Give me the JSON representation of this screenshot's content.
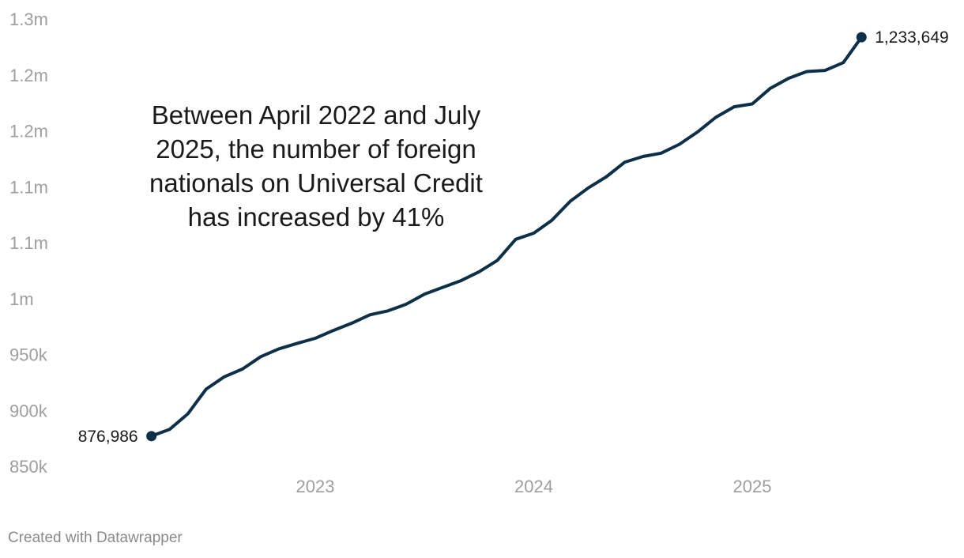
{
  "chart_data": {
    "type": "line",
    "title": "",
    "xlabel": "",
    "ylabel": "",
    "ylim": [
      850000,
      1250000
    ],
    "y_ticks": [
      {
        "value": 1250000,
        "label": "1.3m"
      },
      {
        "value": 1200000,
        "label": "1.2m"
      },
      {
        "value": 1150000,
        "label": "1.2m"
      },
      {
        "value": 1100000,
        "label": "1.1m"
      },
      {
        "value": 1050000,
        "label": "1.1m"
      },
      {
        "value": 1000000,
        "label": "1m"
      },
      {
        "value": 950000,
        "label": "950k"
      },
      {
        "value": 900000,
        "label": "900k"
      },
      {
        "value": 850000,
        "label": "850k"
      }
    ],
    "x_ticks": [
      {
        "value": 2023.0,
        "label": "2023"
      },
      {
        "value": 2024.0,
        "label": "2024"
      },
      {
        "value": 2025.0,
        "label": "2025"
      }
    ],
    "series": [
      {
        "name": "Foreign nationals on Universal Credit",
        "color": "#0d3049",
        "x": [
          2022.25,
          2022.333,
          2022.417,
          2022.5,
          2022.583,
          2022.667,
          2022.75,
          2022.833,
          2022.917,
          2023.0,
          2023.083,
          2023.167,
          2023.25,
          2023.333,
          2023.417,
          2023.5,
          2023.583,
          2023.667,
          2023.75,
          2023.833,
          2023.917,
          2024.0,
          2024.083,
          2024.167,
          2024.25,
          2024.333,
          2024.417,
          2024.5,
          2024.583,
          2024.667,
          2024.75,
          2024.833,
          2024.917,
          2025.0,
          2025.083,
          2025.167,
          2025.25,
          2025.333,
          2025.417,
          2025.5
        ],
        "values": [
          876986,
          883000,
          897000,
          919000,
          930000,
          937000,
          948000,
          955000,
          960000,
          964500,
          971500,
          978000,
          985500,
          989000,
          995000,
          1004000,
          1010000,
          1016000,
          1024000,
          1034000,
          1053000,
          1058500,
          1070000,
          1087000,
          1099000,
          1109000,
          1122000,
          1127000,
          1130000,
          1138000,
          1149000,
          1162000,
          1171500,
          1174000,
          1188000,
          1197000,
          1203000,
          1204000,
          1211000,
          1233649
        ]
      }
    ],
    "data_labels": [
      {
        "index": 0,
        "text": "876,986"
      },
      {
        "index": 39,
        "text": "1,233,649"
      }
    ],
    "annotation": {
      "lines": [
        "Between April 2022 and July",
        "2025, the number of foreign",
        "nationals on Universal Credit",
        "has increased by 41%"
      ]
    },
    "grid": false,
    "legend": "none"
  },
  "footer": {
    "credit": "Created with Datawrapper"
  }
}
